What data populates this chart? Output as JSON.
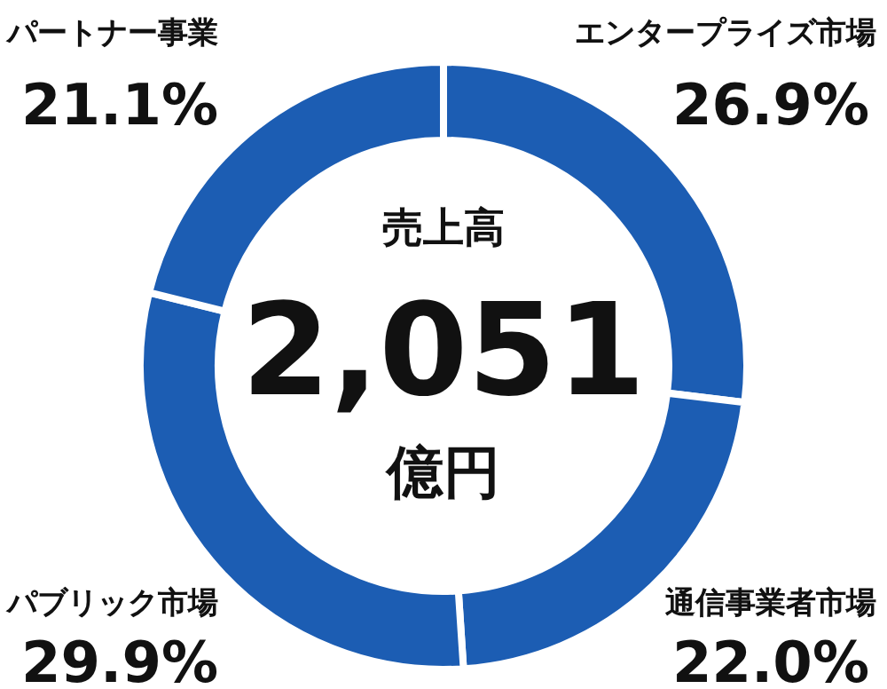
{
  "chart_data": {
    "type": "donut",
    "title": "売上高",
    "annotations": [
      "2,051",
      "億円"
    ],
    "categories": [
      "エンタープライズ市場",
      "通信事業者市場",
      "パブリック市場",
      "パートナー事業"
    ],
    "values": [
      26.9,
      22.0,
      29.9,
      21.1
    ],
    "colors": [
      "#1c5db3",
      "#1c5db3",
      "#1c5db3",
      "#1c5db3"
    ],
    "value_labels": [
      "26.9%",
      "22.0%",
      "29.9%",
      "21.1%"
    ]
  }
}
